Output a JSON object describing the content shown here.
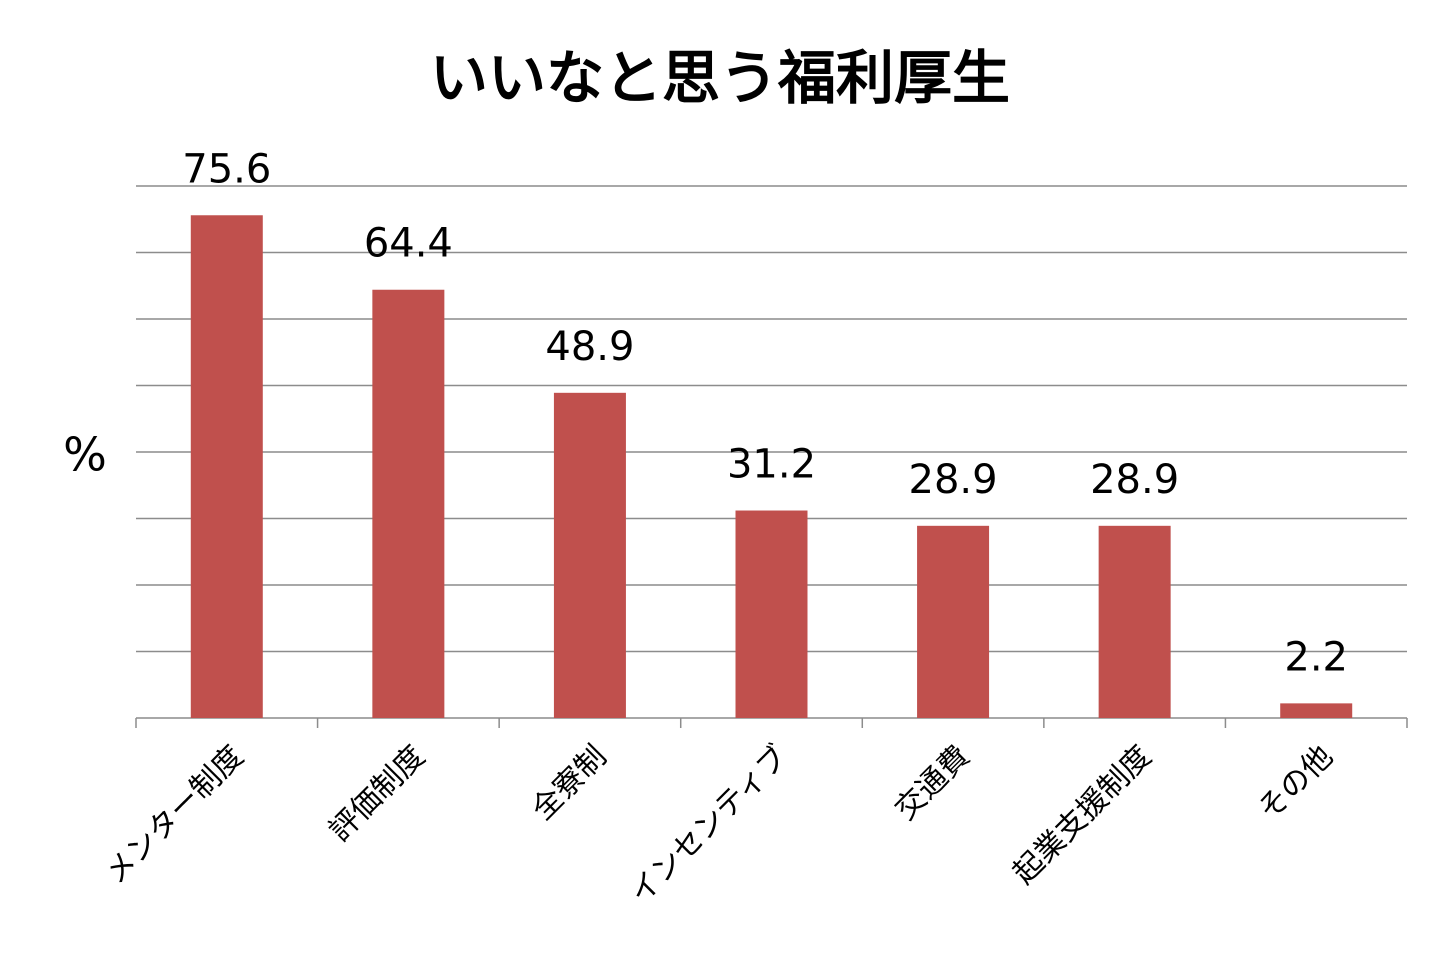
{
  "chart_data": {
    "type": "bar",
    "title": "いいなと思う福利厚生",
    "y_label": "%",
    "categories": [
      "メンター制度",
      "評価制度",
      "全寮制",
      "インセンティブ",
      "交通費",
      "起業支援制度",
      "その他"
    ],
    "values": [
      75.6,
      64.4,
      48.9,
      31.2,
      28.9,
      28.9,
      2.2
    ],
    "color": "#c0504d",
    "ylim": [
      0,
      80
    ],
    "yticks": [
      0,
      10,
      20,
      30,
      40,
      50,
      60,
      70,
      80
    ],
    "grid": true
  }
}
